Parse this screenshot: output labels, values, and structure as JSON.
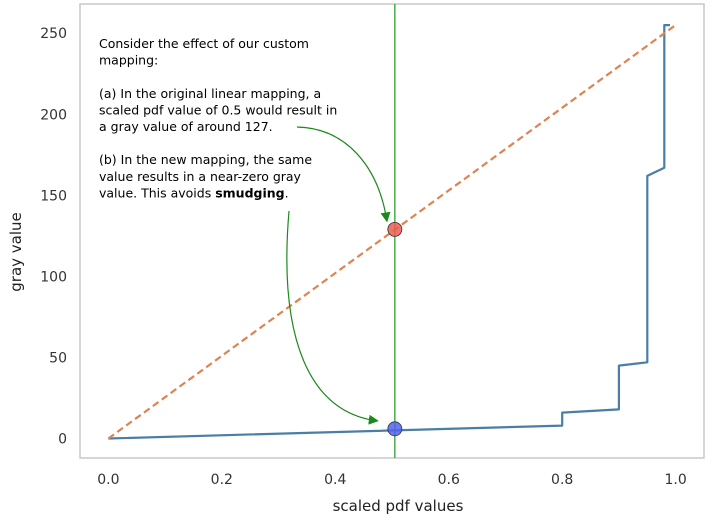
{
  "chart_data": {
    "type": "line",
    "title": "",
    "xlabel": "scaled pdf values",
    "ylabel": "gray value",
    "xlim": [
      -0.05,
      1.05
    ],
    "ylim": [
      -12,
      268
    ],
    "xticks": [
      "0.0",
      "0.2",
      "0.4",
      "0.6",
      "0.8",
      "1.0"
    ],
    "xtick_values": [
      0.0,
      0.2,
      0.4,
      0.6,
      0.8,
      1.0
    ],
    "yticks": [
      "0",
      "50",
      "100",
      "150",
      "200",
      "250"
    ],
    "ytick_values": [
      0,
      50,
      100,
      150,
      200,
      250
    ],
    "grid": false,
    "series": [
      {
        "color": "#4a7ea4",
        "style": "solid",
        "x": [
          0.0,
          0.8,
          0.8,
          0.9,
          0.9,
          0.95,
          0.95,
          0.98,
          0.98,
          0.98,
          0.99
        ],
        "y": [
          0,
          8,
          16,
          18,
          45,
          47,
          162,
          167,
          245,
          255,
          255
        ]
      },
      {
        "color": "#dd8452",
        "style": "dashed",
        "x": [
          0.0,
          1.0
        ],
        "y": [
          0,
          255
        ]
      }
    ],
    "vline": {
      "x": 0.505,
      "color": "#2ca02c"
    },
    "markers": [
      {
        "x": 0.505,
        "y": 129,
        "color": "#f05a52"
      },
      {
        "x": 0.505,
        "y": 6,
        "color": "#4f63f0"
      }
    ],
    "annotation": {
      "lines": [
        [
          {
            "text": "Consider the effect of our custom"
          }
        ],
        [
          {
            "text": "mapping:"
          }
        ],
        [
          {
            "text": ""
          }
        ],
        [
          {
            "text": "(a) In the original linear mapping, a"
          }
        ],
        [
          {
            "text": "scaled pdf value of 0.5 would result in"
          }
        ],
        [
          {
            "text": "a gray value of around 127."
          }
        ],
        [
          {
            "text": ""
          }
        ],
        [
          {
            "text": "(b) In the new mapping, the same"
          }
        ],
        [
          {
            "text": "value results in a near-zero gray"
          }
        ],
        [
          {
            "text": "value. This avoids "
          },
          {
            "text": "smudging",
            "bold": true
          },
          {
            "text": "."
          }
        ]
      ],
      "arrow_color": "#1a8a1a"
    }
  }
}
